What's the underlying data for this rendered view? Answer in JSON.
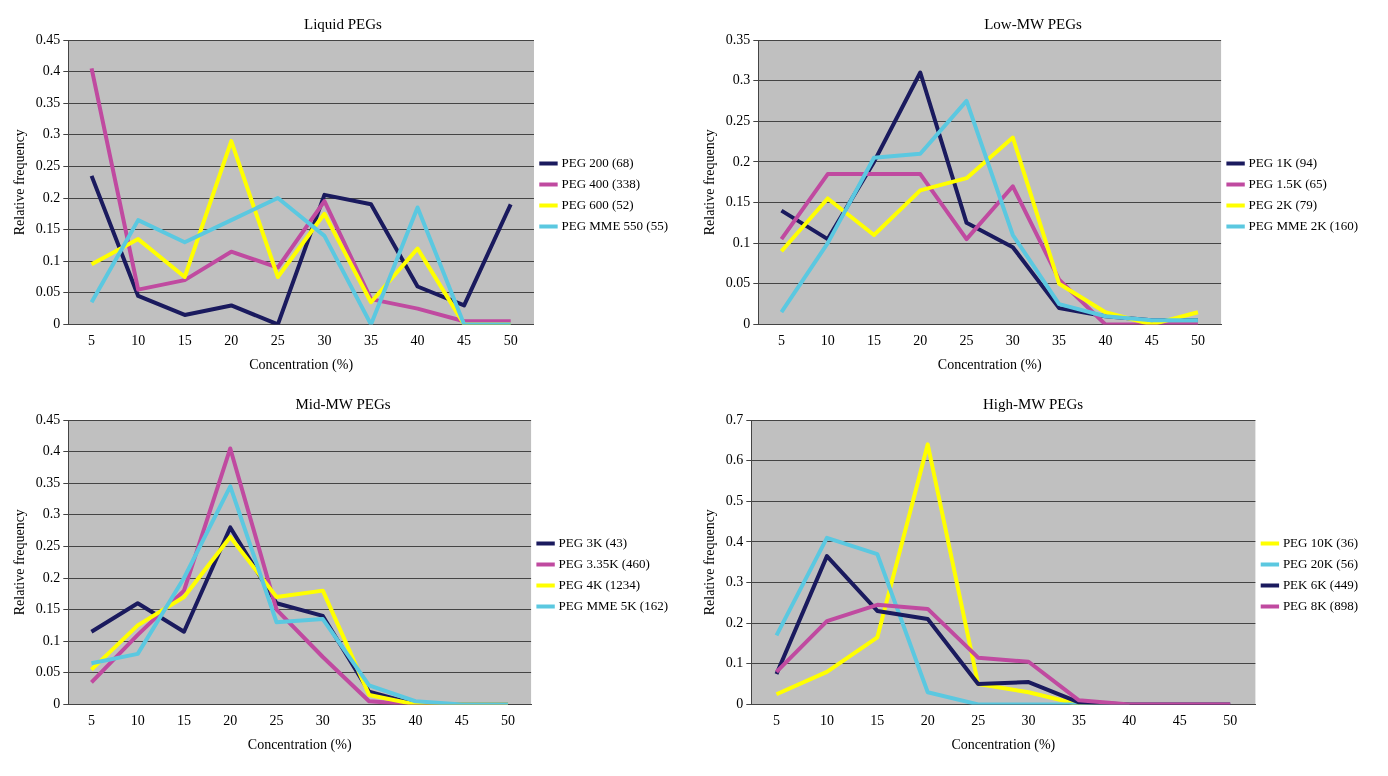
{
  "chart_data": [
    {
      "type": "line",
      "title": "Liquid PEGs",
      "xlabel": "Concentration (%)",
      "ylabel": "Relative frequency",
      "categories": [
        "5",
        "10",
        "15",
        "20",
        "25",
        "30",
        "35",
        "40",
        "45",
        "50"
      ],
      "ylim": [
        0,
        0.45
      ],
      "yticks": [
        0,
        0.05,
        0.1,
        0.15,
        0.2,
        0.25,
        0.3,
        0.35,
        0.4,
        0.45
      ],
      "grid": "y",
      "legend": "right",
      "marker": "none",
      "line_style": "solid",
      "series": [
        {
          "name": "PEG 200 (68)",
          "color": "#1a1a5e",
          "values": [
            0.235,
            0.045,
            0.015,
            0.03,
            0,
            0.205,
            0.19,
            0.06,
            0.03,
            0.19
          ]
        },
        {
          "name": "PEG 400 (338)",
          "color": "#c04aa0",
          "values": [
            0.405,
            0.055,
            0.07,
            0.115,
            0.09,
            0.195,
            0.04,
            0.025,
            0.005,
            0.005
          ]
        },
        {
          "name": "PEG 600 (52)",
          "color": "#ffff00",
          "values": [
            0.095,
            0.135,
            0.075,
            0.29,
            0.075,
            0.175,
            0.035,
            0.12,
            0,
            0
          ]
        },
        {
          "name": "PEG MME 550 (55)",
          "color": "#5bc8e0",
          "values": [
            0.035,
            0.165,
            0.13,
            0.165,
            0.2,
            0.14,
            0,
            0.185,
            0,
            0
          ]
        }
      ]
    },
    {
      "type": "line",
      "title": "Low-MW PEGs",
      "xlabel": "Concentration (%)",
      "ylabel": "Relative frequency",
      "categories": [
        "5",
        "10",
        "15",
        "20",
        "25",
        "30",
        "35",
        "40",
        "45",
        "50"
      ],
      "ylim": [
        0,
        0.35
      ],
      "yticks": [
        0,
        0.05,
        0.1,
        0.15,
        0.2,
        0.25,
        0.3,
        0.35
      ],
      "grid": "y",
      "legend": "right",
      "marker": "none",
      "line_style": "solid",
      "series": [
        {
          "name": "PEG 1K (94)",
          "color": "#1a1a5e",
          "values": [
            0.14,
            0.105,
            0.2,
            0.31,
            0.125,
            0.095,
            0.02,
            0.01,
            0.005,
            0.005
          ]
        },
        {
          "name": "PEG 1.5K (65)",
          "color": "#c04aa0",
          "values": [
            0.105,
            0.185,
            0.185,
            0.185,
            0.105,
            0.17,
            0.055,
            0,
            0,
            0
          ]
        },
        {
          "name": "PEG 2K (79)",
          "color": "#ffff00",
          "values": [
            0.09,
            0.155,
            0.11,
            0.165,
            0.18,
            0.23,
            0.05,
            0.015,
            0,
            0.015
          ]
        },
        {
          "name": "PEG MME 2K (160)",
          "color": "#5bc8e0",
          "values": [
            0.015,
            0.1,
            0.205,
            0.21,
            0.275,
            0.11,
            0.025,
            0.01,
            0.005,
            0.005
          ]
        }
      ]
    },
    {
      "type": "line",
      "title": "Mid-MW PEGs",
      "xlabel": "Concentration (%)",
      "ylabel": "Relative frequency",
      "categories": [
        "5",
        "10",
        "15",
        "20",
        "25",
        "30",
        "35",
        "40",
        "45",
        "50"
      ],
      "ylim": [
        0,
        0.45
      ],
      "yticks": [
        0,
        0.05,
        0.1,
        0.15,
        0.2,
        0.25,
        0.3,
        0.35,
        0.4,
        0.45
      ],
      "grid": "y",
      "legend": "right",
      "marker": "none",
      "line_style": "solid",
      "series": [
        {
          "name": "PEG 3K (43)",
          "color": "#1a1a5e",
          "values": [
            0.115,
            0.16,
            0.115,
            0.28,
            0.16,
            0.14,
            0.02,
            0,
            0,
            0
          ]
        },
        {
          "name": "PEG 3.35K (460)",
          "color": "#c04aa0",
          "values": [
            0.035,
            0.11,
            0.18,
            0.405,
            0.15,
            0.075,
            0.005,
            0,
            0,
            0
          ]
        },
        {
          "name": "PEG 4K (1234)",
          "color": "#ffff00",
          "values": [
            0.055,
            0.125,
            0.17,
            0.265,
            0.17,
            0.18,
            0.015,
            0,
            0,
            0
          ]
        },
        {
          "name": "PEG MME 5K (162)",
          "color": "#5bc8e0",
          "values": [
            0.065,
            0.08,
            0.2,
            0.345,
            0.13,
            0.135,
            0.03,
            0.005,
            0,
            0
          ]
        }
      ]
    },
    {
      "type": "line",
      "title": "High-MW PEGs",
      "xlabel": "Concentration (%)",
      "ylabel": "Relative frequency",
      "categories": [
        "5",
        "10",
        "15",
        "20",
        "25",
        "30",
        "35",
        "40",
        "45",
        "50"
      ],
      "ylim": [
        0,
        0.7
      ],
      "yticks": [
        0,
        0.1,
        0.2,
        0.3,
        0.4,
        0.5,
        0.6,
        0.7
      ],
      "grid": "y",
      "legend": "right",
      "marker": "none",
      "line_style": "solid",
      "series": [
        {
          "name": "PEG 10K (36)",
          "color": "#ffff00",
          "values": [
            0.025,
            0.08,
            0.165,
            0.64,
            0.05,
            0.03,
            0,
            0,
            null,
            null
          ]
        },
        {
          "name": "PEG 20K (56)",
          "color": "#5bc8e0",
          "values": [
            0.17,
            0.41,
            0.37,
            0.03,
            0,
            0,
            0,
            0,
            null,
            null
          ]
        },
        {
          "name": "PEK 6K (449)",
          "color": "#1a1a5e",
          "values": [
            0.075,
            0.365,
            0.23,
            0.21,
            0.05,
            0.055,
            0.005,
            0,
            0,
            0
          ]
        },
        {
          "name": "PEG 8K (898)",
          "color": "#c04aa0",
          "values": [
            0.08,
            0.205,
            0.245,
            0.235,
            0.115,
            0.105,
            0.01,
            0,
            0,
            0
          ]
        }
      ]
    }
  ]
}
